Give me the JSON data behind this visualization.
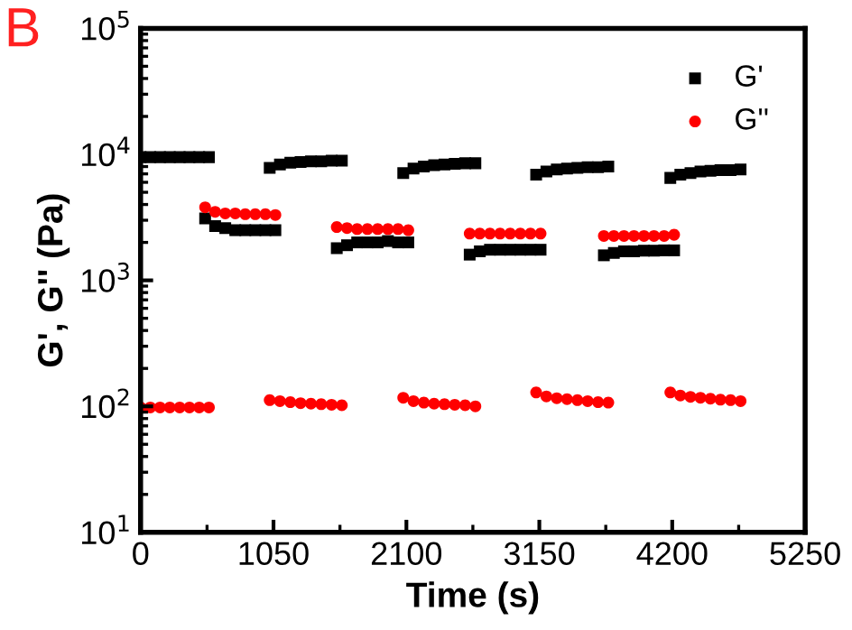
{
  "chart_data": {
    "type": "scatter",
    "xlabel": "Time (s)",
    "ylabel": "G', G'' (Pa)",
    "log": "y",
    "xlim": [
      0,
      5250
    ],
    "xticks": [
      0,
      1050,
      2100,
      3150,
      4200,
      5250
    ],
    "ylim": [
      10,
      100000
    ],
    "yticks": [
      {
        "value": 10,
        "label": "10$^{1}$"
      },
      {
        "value": 100,
        "label": "10$^{2}$"
      },
      {
        "value": 1000,
        "label": "10$^{3}$"
      },
      {
        "value": 10000,
        "label": "10$^{4}$"
      },
      {
        "value": 100000,
        "label": "10$^{5}$"
      }
    ],
    "grid": false,
    "legend": "top right",
    "annotations": [
      "B"
    ],
    "x": [
      0,
      77,
      154,
      231,
      309,
      386,
      463,
      540,
      510,
      589,
      669,
      748,
      827,
      906,
      986,
      1065,
      1020,
      1101,
      1183,
      1264,
      1346,
      1427,
      1509,
      1590,
      1550,
      1631,
      1711,
      1792,
      1873,
      1954,
      2034,
      2115,
      2075,
      2156,
      2238,
      2319,
      2401,
      2482,
      2564,
      2645,
      2600,
      2680,
      2760,
      2840,
      2920,
      3000,
      3080,
      3160,
      3125,
      3206,
      3288,
      3369,
      3451,
      3532,
      3614,
      3695,
      3660,
      3739,
      3819,
      3898,
      3977,
      4056,
      4136,
      4215,
      4185,
      4264,
      4344,
      4423,
      4502,
      4581,
      4661,
      4740
    ],
    "series": [
      {
        "name": "G'",
        "color": "#000000",
        "marker": "square",
        "values": [
          9500,
          9500,
          9500,
          9500,
          9500,
          9500,
          9500,
          9500,
          3100,
          2700,
          2600,
          2500,
          2500,
          2500,
          2500,
          2500,
          7800,
          8300,
          8600,
          8700,
          8800,
          8800,
          8900,
          8900,
          1800,
          1900,
          2000,
          2000,
          2000,
          2050,
          2000,
          2000,
          7100,
          7700,
          8000,
          8200,
          8300,
          8400,
          8500,
          8500,
          1600,
          1700,
          1750,
          1750,
          1750,
          1750,
          1750,
          1750,
          6900,
          7300,
          7600,
          7700,
          7800,
          7900,
          7900,
          8000,
          1580,
          1650,
          1700,
          1700,
          1720,
          1720,
          1730,
          1730,
          6500,
          6900,
          7100,
          7300,
          7400,
          7500,
          7500,
          7600
        ]
      },
      {
        "name": "G''",
        "color": "#ff0000",
        "marker": "circle",
        "values": [
          98,
          98,
          98,
          98,
          98,
          98,
          98,
          98,
          3800,
          3500,
          3400,
          3400,
          3350,
          3350,
          3350,
          3300,
          112,
          110,
          108,
          106,
          105,
          104,
          103,
          102,
          2650,
          2600,
          2550,
          2550,
          2550,
          2550,
          2550,
          2500,
          117,
          110,
          107,
          105,
          104,
          103,
          102,
          100,
          2350,
          2350,
          2350,
          2350,
          2350,
          2350,
          2350,
          2350,
          129,
          120,
          116,
          114,
          112,
          110,
          108,
          107,
          2250,
          2250,
          2250,
          2250,
          2250,
          2250,
          2250,
          2300,
          129,
          122,
          119,
          117,
          115,
          113,
          112,
          110
        ]
      }
    ]
  }
}
